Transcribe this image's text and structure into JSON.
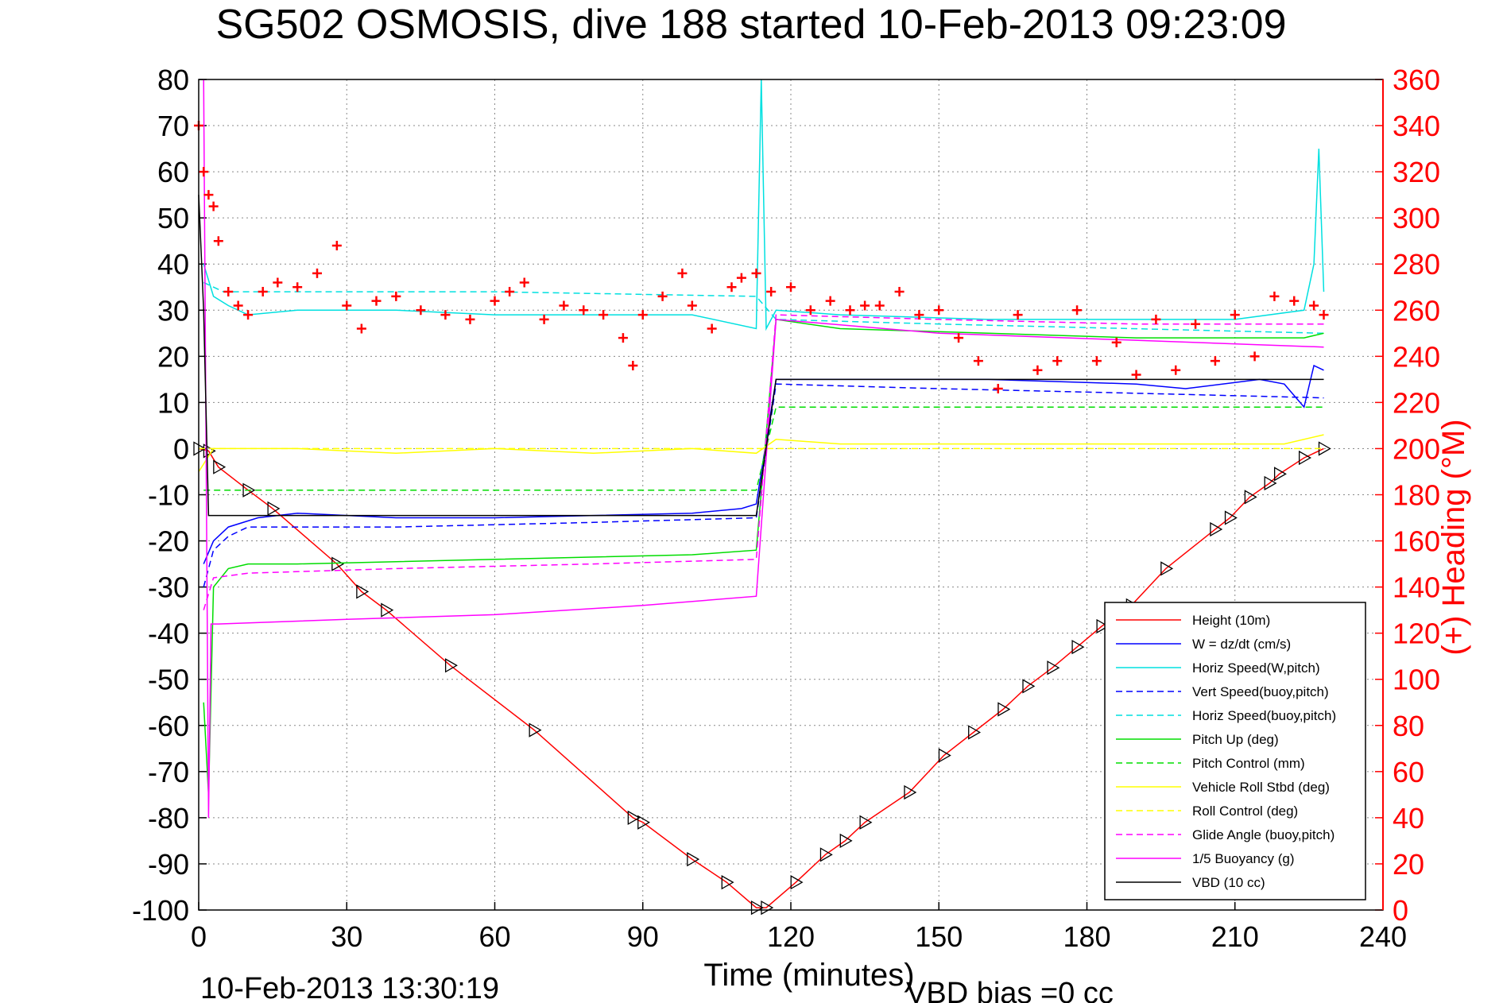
{
  "chart_data": {
    "type": "line",
    "title": "SG502 OSMOSIS, dive 188 started 10-Feb-2013 09:23:09",
    "xlabel": "Time (minutes)",
    "ylabel_right": "(+) Heading (°M)",
    "footer_left": "10-Feb-2013 13:30:19",
    "footer_right": "VBD bias =0 cc",
    "xlim": [
      0,
      240
    ],
    "ylim": [
      -100,
      80
    ],
    "ylim_right": [
      0,
      360
    ],
    "x_ticks": [
      0,
      30,
      60,
      90,
      120,
      150,
      180,
      210,
      240
    ],
    "y_ticks": [
      80,
      70,
      60,
      50,
      40,
      30,
      20,
      10,
      0,
      -10,
      -20,
      -30,
      -40,
      -50,
      -60,
      -70,
      -80,
      -90,
      -100
    ],
    "y_ticks_right": [
      360,
      340,
      320,
      300,
      280,
      260,
      240,
      220,
      200,
      180,
      160,
      140,
      120,
      100,
      80,
      60,
      40,
      20,
      0
    ],
    "grid": true,
    "legend_position": "bottom-right",
    "series": [
      {
        "name": "Height (10m)",
        "color": "#ff0000",
        "dash": "solid",
        "marker": "triangle",
        "x": [
          0,
          2,
          4,
          10,
          15,
          28,
          33,
          38,
          51,
          68,
          88,
          90,
          100,
          107,
          113,
          115,
          121,
          127,
          131,
          135,
          144,
          151,
          157,
          163,
          168,
          173,
          178,
          183,
          189,
          196,
          206,
          209,
          213,
          217,
          219,
          224,
          228
        ],
        "y": [
          0,
          -0.5,
          -4,
          -9,
          -13,
          -25,
          -31,
          -35,
          -47,
          -61,
          -80,
          -81,
          -89,
          -94,
          -99.5,
          -99.5,
          -94,
          -88,
          -85,
          -81,
          -74.5,
          -66.5,
          -61.5,
          -56.5,
          -51.5,
          -47.5,
          -43,
          -38.5,
          -34,
          -26,
          -17.5,
          -15,
          -10.5,
          -7.5,
          -5.5,
          -2,
          0
        ]
      },
      {
        "name": "W = dz/dt (cm/s)",
        "color": "#0000ff",
        "dash": "solid",
        "x": [
          1,
          3,
          6,
          12,
          20,
          40,
          60,
          80,
          100,
          110,
          113,
          117,
          130,
          160,
          190,
          200,
          215,
          220,
          224,
          226,
          228
        ],
        "y": [
          -25,
          -20,
          -17,
          -15,
          -14,
          -15,
          -15,
          -14.5,
          -14,
          -13,
          -12,
          15,
          15,
          15,
          14,
          13,
          15,
          14,
          9,
          18,
          17
        ]
      },
      {
        "name": "Horiz Speed(W,pitch)",
        "color": "#00e0e0",
        "dash": "solid",
        "x": [
          1,
          3,
          6,
          10,
          20,
          40,
          60,
          80,
          100,
          113,
          114,
          115,
          117,
          130,
          160,
          190,
          210,
          224,
          226,
          227,
          228
        ],
        "y": [
          40,
          33,
          31,
          29,
          30,
          30,
          29,
          29,
          29,
          26,
          80,
          26,
          30,
          29,
          28,
          28,
          28,
          30,
          40,
          65,
          34
        ]
      },
      {
        "name": "Vert Speed(buoy,pitch)",
        "color": "#0000ff",
        "dash": "dashed",
        "x": [
          1,
          3,
          6,
          10,
          40,
          80,
          113,
          117,
          150,
          190,
          228
        ],
        "y": [
          -30,
          -22,
          -19,
          -17,
          -17,
          -16,
          -15,
          14,
          13,
          12,
          11
        ]
      },
      {
        "name": "Horiz Speed(buoy,pitch)",
        "color": "#00e0e0",
        "dash": "dashed",
        "x": [
          1,
          5,
          20,
          60,
          113,
          117,
          150,
          228
        ],
        "y": [
          36,
          34,
          34,
          34,
          33,
          28,
          27,
          25
        ]
      },
      {
        "name": "Pitch Up (deg)",
        "color": "#00dd00",
        "dash": "solid",
        "x": [
          1,
          2,
          3,
          6,
          10,
          20,
          40,
          60,
          80,
          100,
          113,
          117,
          130,
          160,
          190,
          210,
          224,
          228
        ],
        "y": [
          -55,
          -75,
          -30,
          -26,
          -25,
          -25,
          -24.5,
          -24,
          -23.5,
          -23,
          -22,
          28,
          26,
          25,
          24,
          24,
          24,
          25
        ]
      },
      {
        "name": "Pitch Control (mm)",
        "color": "#00dd00",
        "dash": "dashed",
        "x": [
          1,
          3,
          10,
          60,
          113,
          117,
          150,
          228
        ],
        "y": [
          -9,
          -9,
          -9,
          -9,
          -9,
          9,
          9,
          9
        ]
      },
      {
        "name": "Vehicle Roll Stbd (deg)",
        "color": "#ffff00",
        "dash": "solid",
        "x": [
          0,
          3,
          5,
          10,
          20,
          40,
          60,
          80,
          100,
          113,
          117,
          130,
          160,
          190,
          220,
          228
        ],
        "y": [
          -5,
          0,
          0,
          0,
          0,
          -1,
          0,
          -1,
          0,
          -1,
          2,
          1,
          1,
          1,
          1,
          3
        ]
      },
      {
        "name": "Roll Control (deg)",
        "color": "#ffff00",
        "dash": "dashed",
        "x": [
          0,
          5,
          60,
          113,
          117,
          228
        ],
        "y": [
          0,
          0,
          0,
          0,
          0,
          0
        ]
      },
      {
        "name": "Glide Angle (buoy,pitch)",
        "color": "#ff00ff",
        "dash": "dashed",
        "x": [
          1,
          3,
          10,
          40,
          80,
          113,
          117,
          150,
          190,
          228
        ],
        "y": [
          -35,
          -28,
          -27,
          -26,
          -25,
          -24,
          29,
          28,
          27,
          27
        ]
      },
      {
        "name": "1/5 Buoyancy (g)",
        "color": "#ff00ff",
        "dash": "solid",
        "x": [
          1,
          2,
          2.5,
          4,
          30,
          60,
          90,
          113,
          117,
          150,
          228
        ],
        "y": [
          80,
          -80,
          -38,
          -38,
          -37,
          -36,
          -34,
          -32,
          28,
          25,
          22
        ]
      },
      {
        "name": "VBD (10 cc)",
        "color": "#000000",
        "dash": "solid",
        "x": [
          0,
          1,
          2,
          3,
          113,
          117,
          228
        ],
        "y": [
          55,
          30,
          -14.5,
          -14.5,
          -14.5,
          15,
          15
        ]
      },
      {
        "name": "(+) Heading (°M)",
        "color": "#ff0000",
        "marker": "plus",
        "axis": "right",
        "x": [
          0,
          1,
          2,
          3,
          4,
          6,
          8,
          10,
          13,
          16,
          20,
          24,
          28,
          30,
          33,
          36,
          40,
          45,
          50,
          55,
          60,
          63,
          66,
          70,
          74,
          78,
          82,
          86,
          88,
          90,
          94,
          98,
          100,
          104,
          108,
          110,
          113,
          116,
          120,
          124,
          128,
          132,
          135,
          138,
          142,
          146,
          150,
          154,
          158,
          162,
          166,
          170,
          174,
          178,
          182,
          186,
          190,
          194,
          198,
          202,
          206,
          210,
          214,
          218,
          222,
          226,
          228
        ],
        "y": [
          340,
          320,
          310,
          305,
          290,
          268,
          262,
          258,
          268,
          272,
          270,
          276,
          288,
          262,
          252,
          264,
          266,
          260,
          258,
          256,
          264,
          268,
          272,
          256,
          262,
          260,
          258,
          248,
          236,
          258,
          266,
          276,
          262,
          252,
          270,
          274,
          276,
          268,
          270,
          260,
          264,
          260,
          262,
          262,
          268,
          258,
          260,
          248,
          238,
          226,
          258,
          234,
          238,
          260,
          238,
          246,
          232,
          256,
          234,
          254,
          238,
          258,
          240,
          266,
          264,
          262,
          258
        ]
      }
    ]
  },
  "legend_title": "",
  "colors": {
    "axis_right": "#ff0000",
    "grid": "#888888"
  }
}
